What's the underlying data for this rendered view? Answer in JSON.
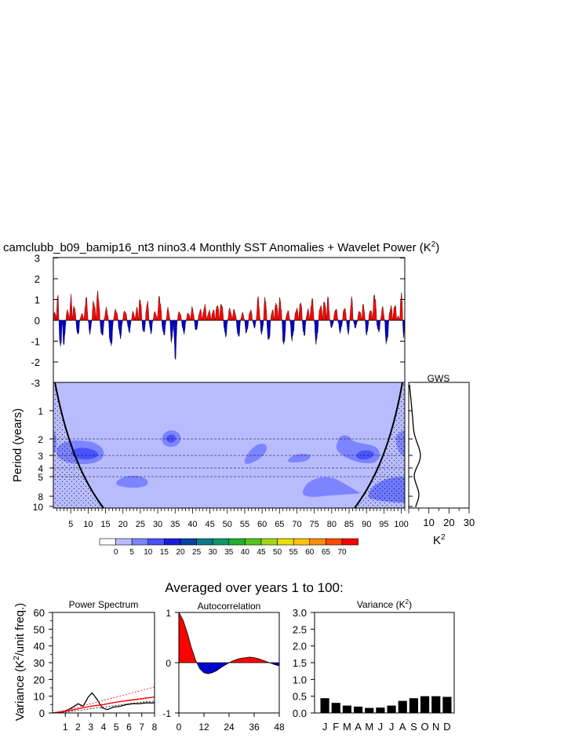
{
  "title": "camclubb_b09_bamip16_nt3 nino3.4 Monthly SST Anomalies + Wavelet Power (K",
  "title_sup": "2",
  "title_close": ")",
  "subtitle": "Averaged over years 1 to 100:",
  "colors": {
    "positive": "#ff0000",
    "negative": "#0000cc",
    "wavelet_bg": "#b8bcff",
    "wavelet_mid": "#6e78ff",
    "wavelet_high": "#2a33ee"
  },
  "chart_data": [
    {
      "id": "timeseries",
      "type": "area",
      "title": "nino3.4 Monthly SST Anomalies",
      "ylim": [
        -3,
        3
      ],
      "yticks": [
        "3",
        "2",
        "1",
        "0",
        "-1",
        "-2",
        "-3"
      ],
      "xlim": [
        0,
        101
      ],
      "peaks": [
        [
          0.5,
          0.4
        ],
        [
          1.2,
          1.25
        ],
        [
          2.0,
          -1.35
        ],
        [
          3.0,
          -1.1
        ],
        [
          4.2,
          0.5
        ],
        [
          5.0,
          1.1
        ],
        [
          6.0,
          0.7
        ],
        [
          7.0,
          -0.7
        ],
        [
          8.2,
          0.3
        ],
        [
          9.5,
          1.05
        ],
        [
          10.5,
          -0.6
        ],
        [
          11.6,
          0.9
        ],
        [
          12.8,
          1.3
        ],
        [
          14.0,
          -0.75
        ],
        [
          15.2,
          0.55
        ],
        [
          16.5,
          -1.2
        ],
        [
          18.0,
          0.5
        ],
        [
          19.2,
          -0.8
        ],
        [
          20.6,
          0.45
        ],
        [
          21.8,
          -0.55
        ],
        [
          23.0,
          0.4
        ],
        [
          24.0,
          0.6
        ],
        [
          24.9,
          1.05
        ],
        [
          26.0,
          -0.6
        ],
        [
          27.0,
          0.9
        ],
        [
          28.0,
          -0.6
        ],
        [
          29.2,
          0.4
        ],
        [
          30.5,
          1.1
        ],
        [
          31.8,
          -0.7
        ],
        [
          33.0,
          0.55
        ],
        [
          34.0,
          -1.0
        ],
        [
          35.0,
          -1.75
        ],
        [
          36.2,
          0.4
        ],
        [
          37.5,
          -0.6
        ],
        [
          38.8,
          0.35
        ],
        [
          40.0,
          0.6
        ],
        [
          41.0,
          -0.5
        ],
        [
          42.2,
          0.5
        ],
        [
          43.5,
          0.7
        ],
        [
          44.8,
          0.45
        ],
        [
          46.0,
          0.5
        ],
        [
          47.1,
          0.75
        ],
        [
          48.3,
          0.8
        ],
        [
          49.5,
          -0.75
        ],
        [
          50.7,
          0.55
        ],
        [
          52.0,
          0.5
        ],
        [
          53.2,
          -0.8
        ],
        [
          54.4,
          0.35
        ],
        [
          55.5,
          -0.6
        ],
        [
          56.7,
          0.5
        ],
        [
          57.8,
          -0.35
        ],
        [
          58.8,
          1.05
        ],
        [
          60.0,
          -0.65
        ],
        [
          60.8,
          1.1
        ],
        [
          61.9,
          -1.0
        ],
        [
          63.0,
          0.5
        ],
        [
          64.0,
          0.85
        ],
        [
          65.2,
          1.0
        ],
        [
          66.2,
          -1.2
        ],
        [
          67.4,
          0.45
        ],
        [
          68.6,
          -0.9
        ],
        [
          70.0,
          0.55
        ],
        [
          71.1,
          0.9
        ],
        [
          72.0,
          -0.75
        ],
        [
          73.2,
          0.5
        ],
        [
          74.3,
          1.0
        ],
        [
          75.6,
          -1.05
        ],
        [
          76.8,
          0.7
        ],
        [
          78.0,
          0.95
        ],
        [
          78.9,
          1.05
        ],
        [
          80.0,
          -0.35
        ],
        [
          81.1,
          0.55
        ],
        [
          82.5,
          -0.55
        ],
        [
          83.7,
          0.6
        ],
        [
          84.8,
          -0.65
        ],
        [
          85.6,
          1.05
        ],
        [
          86.8,
          -0.35
        ],
        [
          88.0,
          0.45
        ],
        [
          89.2,
          0.75
        ],
        [
          90.0,
          -0.7
        ],
        [
          91.2,
          0.5
        ],
        [
          92.3,
          1.25
        ],
        [
          93.5,
          -0.55
        ],
        [
          94.6,
          0.6
        ],
        [
          95.8,
          -1.1
        ],
        [
          97.0,
          0.65
        ],
        [
          98.2,
          0.75
        ],
        [
          99.2,
          0.2
        ],
        [
          100.0,
          1.4
        ],
        [
          100.8,
          -0.8
        ]
      ]
    },
    {
      "id": "wavelet",
      "type": "heatmap",
      "ylabel": "Period (years)",
      "yticks": [
        "1",
        "2",
        "3",
        "4",
        "5",
        "8",
        "10"
      ],
      "xticks": [
        "5",
        "10",
        "15",
        "20",
        "25",
        "30",
        "35",
        "40",
        "45",
        "50",
        "55",
        "60",
        "65",
        "70",
        "75",
        "80",
        "85",
        "90",
        "95",
        "100"
      ],
      "colorbar_labels": [
        "0",
        "5",
        "10",
        "15",
        "20",
        "25",
        "30",
        "35",
        "40",
        "45",
        "50",
        "55",
        "60",
        "65",
        "70"
      ],
      "colorbar_colors": [
        "#ffffff",
        "#b8bcff",
        "#7c84ff",
        "#4a52ff",
        "#1a1adf",
        "#0a3fa8",
        "#0a7a85",
        "#10956a",
        "#1fb02f",
        "#55c51b",
        "#a3d814",
        "#e8e00b",
        "#ffc20a",
        "#ff8c05",
        "#ff4a00",
        "#ff0000"
      ]
    },
    {
      "id": "gws",
      "type": "line",
      "title": "GWS",
      "xlabel": "K",
      "xlabel_sup": "2",
      "xticks": [
        "10",
        "20",
        "30"
      ],
      "xlim": [
        0,
        30
      ]
    },
    {
      "id": "power_spectrum",
      "type": "line",
      "title": "Power Spectrum",
      "ylabel": "Variance (K",
      "ylabel_sup": "2",
      "ylabel_close": "/unit freq.)",
      "xticks": [
        "1",
        "2",
        "3",
        "4",
        "5",
        "6",
        "7",
        "8"
      ],
      "yticks": [
        "0",
        "10",
        "20",
        "30",
        "40",
        "50",
        "60"
      ],
      "xlim": [
        0,
        8
      ],
      "ylim": [
        0,
        60
      ],
      "series": [
        {
          "x": [
            0,
            0.5,
            1.0,
            1.5,
            2.0,
            2.4,
            2.8,
            3.1,
            3.5,
            3.9,
            4.3,
            4.8,
            5.3,
            5.8,
            6.3,
            6.8,
            7.3,
            7.8,
            8.0
          ],
          "values": [
            0,
            0.3,
            1.2,
            3.0,
            5.5,
            4.0,
            9.5,
            12.0,
            8.0,
            3.0,
            2.0,
            3.5,
            4.0,
            5.0,
            5.5,
            5.5,
            6.0,
            6.0,
            6.0
          ]
        },
        {
          "x": [
            0,
            1,
            2,
            3,
            4,
            5,
            6,
            7,
            8
          ],
          "values": [
            0,
            0.5,
            1.5,
            2.5,
            3.5,
            4.5,
            5.5,
            6.5,
            7.0
          ]
        },
        {
          "x": [
            0,
            1,
            2,
            3,
            4,
            5,
            6,
            7,
            8
          ],
          "values": [
            0,
            1.0,
            2.5,
            4.0,
            5.0,
            6.5,
            7.5,
            8.5,
            9.5
          ]
        },
        {
          "x": [
            0,
            1,
            2,
            3,
            4,
            5,
            6,
            7,
            8
          ],
          "values": [
            0,
            1.5,
            3.5,
            5.5,
            7.5,
            9.5,
            11.5,
            13.5,
            15.5
          ]
        }
      ]
    },
    {
      "id": "autocorrelation",
      "type": "line",
      "title": "Autocorrelation",
      "xticks": [
        "0",
        "12",
        "24",
        "36",
        "48"
      ],
      "yticks": [
        "-1",
        "0",
        "1"
      ],
      "xlim": [
        0,
        48
      ],
      "ylim": [
        -1,
        1
      ],
      "x": [
        0,
        2,
        4,
        6,
        8,
        10,
        12,
        14,
        16,
        18,
        20,
        22,
        24,
        26,
        28,
        30,
        32,
        34,
        36,
        38,
        40,
        42,
        44,
        46,
        48
      ],
      "values": [
        1.0,
        0.85,
        0.6,
        0.3,
        0.05,
        -0.12,
        -0.2,
        -0.22,
        -0.2,
        -0.16,
        -0.1,
        -0.05,
        0.0,
        0.04,
        0.07,
        0.09,
        0.1,
        0.11,
        0.1,
        0.08,
        0.05,
        0.02,
        -0.01,
        -0.04,
        -0.06
      ]
    },
    {
      "id": "variance",
      "type": "bar",
      "title": "Variance (K",
      "title_sup": "2",
      "title_close": ")",
      "categories": [
        "J",
        "F",
        "M",
        "A",
        "M",
        "J",
        "J",
        "A",
        "S",
        "O",
        "N",
        "D"
      ],
      "values": [
        0.44,
        0.3,
        0.22,
        0.19,
        0.15,
        0.16,
        0.22,
        0.36,
        0.44,
        0.5,
        0.5,
        0.48
      ],
      "yticks": [
        "0.0",
        "0.5",
        "1.0",
        "1.5",
        "2.0",
        "2.5",
        "3.0"
      ],
      "ylim": [
        0,
        3
      ]
    }
  ]
}
